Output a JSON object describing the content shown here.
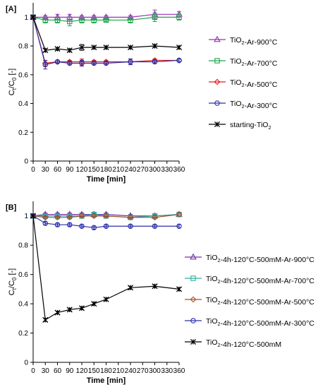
{
  "chart_data": [
    {
      "type": "line",
      "panel_label": "[A]",
      "xlabel": "Time [min]",
      "ylabel": "Ct/C0 [-]",
      "xlim": [
        0,
        360
      ],
      "ylim": [
        0,
        1.1
      ],
      "xticks": [
        "0",
        "30",
        "60",
        "90",
        "120",
        "150",
        "180",
        "210",
        "240",
        "270",
        "300",
        "330",
        "360"
      ],
      "yticks": [
        "0",
        "0.2",
        "0.4",
        "0.6",
        "0.8",
        "1"
      ],
      "grid": false,
      "legend_position": "right",
      "x": [
        0,
        30,
        60,
        90,
        120,
        150,
        180,
        240,
        300,
        360
      ],
      "series": [
        {
          "name": "TiO2-Ar-900°C",
          "marker": "triangle",
          "color": "#9b30b8",
          "values": [
            1.0,
            1.0,
            1.0,
            1.0,
            1.0,
            1.0,
            1.0,
            1.0,
            1.02,
            1.02
          ],
          "err": [
            0,
            0.01,
            0.02,
            0.02,
            0.01,
            0.01,
            0.01,
            0.01,
            0.03,
            0.02
          ]
        },
        {
          "name": "TiO2-Ar-700°C",
          "marker": "square",
          "color": "#1ea64a",
          "values": [
            1.0,
            0.98,
            0.98,
            0.97,
            0.98,
            0.98,
            0.98,
            0.98,
            1.0,
            1.0
          ],
          "err": [
            0,
            0.02,
            0.02,
            0.03,
            0.02,
            0.02,
            0.01,
            0.02,
            0.03,
            0.02
          ]
        },
        {
          "name": "TiO2-Ar-500°C",
          "marker": "diamond",
          "color": "#e0201c",
          "values": [
            1.0,
            0.68,
            0.69,
            0.69,
            0.69,
            0.69,
            0.69,
            0.69,
            0.7,
            0.7
          ],
          "err": [
            0,
            0.02,
            0.01,
            0.01,
            0.02,
            0.01,
            0.01,
            0.02,
            0.01,
            0.01
          ]
        },
        {
          "name": "TiO2-Ar-300°C",
          "marker": "circle",
          "color": "#2a2fa8",
          "values": [
            1.0,
            0.67,
            0.69,
            0.68,
            0.68,
            0.68,
            0.68,
            0.69,
            0.69,
            0.7
          ],
          "err": [
            0,
            0.03,
            0.01,
            0.01,
            0.02,
            0.01,
            0.01,
            0.02,
            0.01,
            0.01
          ]
        },
        {
          "name": "starting-TiO2",
          "marker": "asterisk",
          "color": "#000000",
          "values": [
            1.0,
            0.77,
            0.78,
            0.77,
            0.79,
            0.79,
            0.79,
            0.79,
            0.8,
            0.79
          ],
          "err": [
            0,
            0.01,
            0.01,
            0.01,
            0.02,
            0.01,
            0.01,
            0.01,
            0.01,
            0.01
          ]
        }
      ]
    },
    {
      "type": "line",
      "panel_label": "[B]",
      "xlabel": "Time [min]",
      "ylabel": "Ct/C0 [-]",
      "xlim": [
        0,
        360
      ],
      "ylim": [
        0,
        1.1
      ],
      "xticks": [
        "0",
        "30",
        "60",
        "90",
        "120",
        "150",
        "180",
        "210",
        "240",
        "270",
        "300",
        "330",
        "360"
      ],
      "yticks": [
        "0",
        "0.2",
        "0.4",
        "0.6",
        "0.8",
        "1"
      ],
      "grid": false,
      "legend_position": "right",
      "x": [
        0,
        30,
        60,
        90,
        120,
        150,
        180,
        240,
        300,
        360
      ],
      "series": [
        {
          "name": "TiO2-4h-120°C-500mM-Ar-900°C",
          "marker": "triangle",
          "color": "#7030a0",
          "values": [
            1.0,
            1.01,
            1.01,
            1.01,
            1.01,
            1.01,
            1.01,
            1.0,
            1.0,
            1.01
          ],
          "err": [
            0,
            0.01,
            0.01,
            0.01,
            0.01,
            0.01,
            0.01,
            0.01,
            0.01,
            0.01
          ]
        },
        {
          "name": "TiO2-4h-120°C-500mM-Ar-700°C",
          "marker": "square",
          "color": "#2bb0a0",
          "values": [
            1.0,
            1.0,
            1.0,
            1.0,
            1.0,
            1.01,
            1.0,
            0.99,
            1.0,
            1.01
          ],
          "err": [
            0,
            0.01,
            0.01,
            0.01,
            0.01,
            0.01,
            0.01,
            0.01,
            0.01,
            0.01
          ]
        },
        {
          "name": "TiO2-4h-120°C-500mM-Ar-500°C",
          "marker": "diamond",
          "color": "#a0522d",
          "values": [
            1.0,
            0.99,
            0.99,
            0.99,
            1.0,
            1.0,
            1.0,
            0.99,
            0.99,
            1.01
          ],
          "err": [
            0,
            0.01,
            0.01,
            0.01,
            0.01,
            0.01,
            0.01,
            0.01,
            0.01,
            0.01
          ]
        },
        {
          "name": "TiO2-4h-120°C-500mM-Ar-300°C",
          "marker": "circle",
          "color": "#2a2fa8",
          "values": [
            1.0,
            0.95,
            0.94,
            0.94,
            0.93,
            0.92,
            0.93,
            0.93,
            0.93,
            0.93
          ],
          "err": [
            0,
            0.01,
            0.01,
            0.01,
            0.01,
            0.01,
            0.01,
            0.01,
            0.01,
            0.01
          ]
        },
        {
          "name": "TiO2-4h-120°C-500mM",
          "marker": "asterisk",
          "color": "#000000",
          "values": [
            1.0,
            0.29,
            0.34,
            0.36,
            0.37,
            0.4,
            0.43,
            0.51,
            0.52,
            0.5
          ],
          "err": [
            0,
            0.01,
            0.01,
            0.01,
            0.01,
            0.01,
            0.01,
            0.01,
            0.01,
            0.01
          ]
        }
      ]
    }
  ]
}
